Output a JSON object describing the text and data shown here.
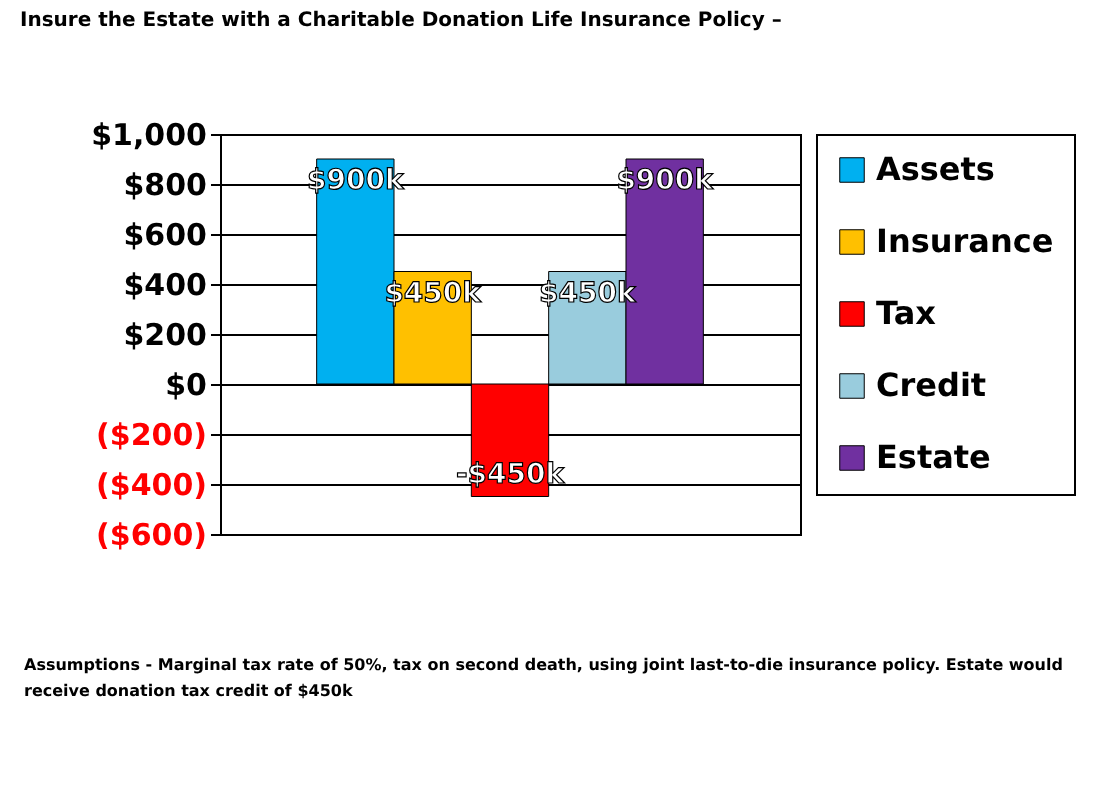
{
  "chart_data": {
    "type": "bar",
    "title": "Insure the Estate with a Charitable Donation Life Insurance Policy –",
    "categories": [
      null
    ],
    "series": [
      {
        "name": "Assets",
        "color": "#00b0f0",
        "values": [
          900
        ],
        "value_labels": [
          "$900k"
        ]
      },
      {
        "name": "Insurance",
        "color": "#ffc000",
        "values": [
          450
        ],
        "value_labels": [
          "$450k"
        ]
      },
      {
        "name": "Tax",
        "color": "#ff0000",
        "values": [
          -450
        ],
        "value_labels": [
          "-$450k"
        ]
      },
      {
        "name": "Credit",
        "color": "#99ccdd",
        "values": [
          450
        ],
        "value_labels": [
          "$450k"
        ]
      },
      {
        "name": "Estate",
        "color": "#7030a0",
        "values": [
          900
        ],
        "value_labels": [
          "$900k"
        ]
      }
    ],
    "ylim": [
      -600,
      1000
    ],
    "yticks": [
      {
        "value": -600,
        "label": "($600)"
      },
      {
        "value": -400,
        "label": "($400)"
      },
      {
        "value": -200,
        "label": "($200)"
      },
      {
        "value": 0,
        "label": "$0"
      },
      {
        "value": 200,
        "label": "$200"
      },
      {
        "value": 400,
        "label": "$400"
      },
      {
        "value": 600,
        "label": "$600"
      },
      {
        "value": 800,
        "label": "$800"
      },
      {
        "value": 1000,
        "label": "$1,000"
      }
    ],
    "grid": "y",
    "legend": "right",
    "tick_labels": "y",
    "annotations": [
      "Assumptions -  Marginal tax rate of 50%, tax on second death, using joint last-to-die insurance policy.   Estate would receive donation  tax credit of $450k"
    ]
  }
}
